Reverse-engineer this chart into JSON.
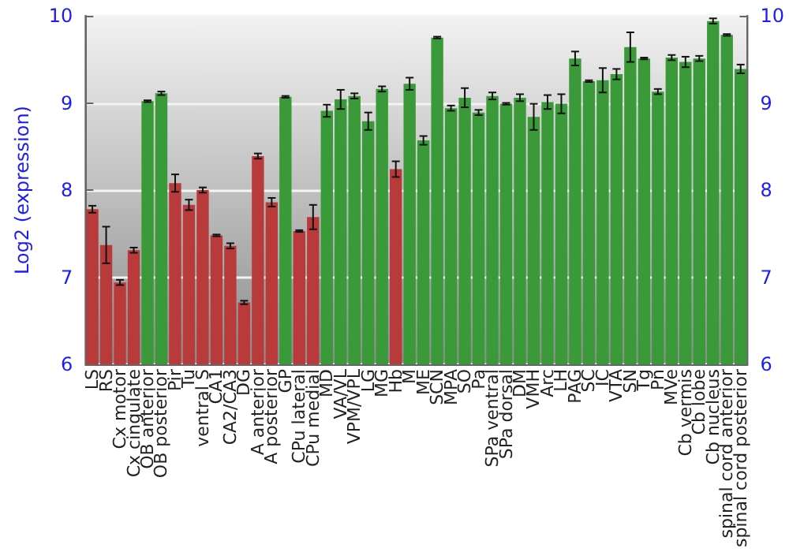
{
  "chart_data": {
    "type": "bar",
    "ylabel": "Log2 (expression)",
    "categories": [
      "LS",
      "RS",
      "Cx motor",
      "Cx cingulate",
      "OB anterior",
      "OB posterior",
      "Pir",
      "Tu",
      "ventral S",
      "CA1",
      "CA2/CA3",
      "DG",
      "A anterior",
      "A posterior",
      "GP",
      "CPu lateral",
      "CPu medial",
      "MD",
      "VA/VL",
      "VPM/VPL",
      "LG",
      "MG",
      "Hb",
      "M",
      "ME",
      "SCN",
      "MPA",
      "SO",
      "Pa",
      "SPa ventral",
      "SPa dorsal",
      "DM",
      "VMH",
      "Arc",
      "LH",
      "PAG",
      "SC",
      "IC",
      "VTA",
      "SN",
      "Tg",
      "Pn",
      "MVe",
      "Cb vermis",
      "Cb lobe",
      "Cb nucleus",
      "spinal cord anterior",
      "spinal cord posterior"
    ],
    "values": [
      7.78,
      7.37,
      6.94,
      7.31,
      9.02,
      9.11,
      8.08,
      7.83,
      8.0,
      7.48,
      7.36,
      6.71,
      8.39,
      7.86,
      9.07,
      7.53,
      7.69,
      8.91,
      9.04,
      9.08,
      8.79,
      9.16,
      8.24,
      9.22,
      8.57,
      9.75,
      8.94,
      9.06,
      8.89,
      9.08,
      8.99,
      9.06,
      8.84,
      9.01,
      8.99,
      9.51,
      9.25,
      9.26,
      9.33,
      9.64,
      9.51,
      9.13,
      9.52,
      9.47,
      9.51,
      9.94,
      9.78,
      9.39
    ],
    "errors": [
      0.04,
      0.21,
      0.03,
      0.03,
      0.01,
      0.02,
      0.1,
      0.06,
      0.03,
      0.01,
      0.03,
      0.02,
      0.03,
      0.05,
      0.01,
      0.01,
      0.14,
      0.07,
      0.11,
      0.03,
      0.1,
      0.03,
      0.09,
      0.07,
      0.05,
      0.01,
      0.03,
      0.11,
      0.03,
      0.04,
      0.01,
      0.04,
      0.15,
      0.08,
      0.11,
      0.08,
      0.01,
      0.14,
      0.06,
      0.17,
      0.01,
      0.03,
      0.03,
      0.06,
      0.03,
      0.03,
      0.01,
      0.05
    ],
    "colors": [
      "#b83a3a",
      "#b83a3a",
      "#b83a3a",
      "#b83a3a",
      "#3a9a3a",
      "#3a9a3a",
      "#b83a3a",
      "#b83a3a",
      "#b83a3a",
      "#b83a3a",
      "#b83a3a",
      "#b83a3a",
      "#b83a3a",
      "#b83a3a",
      "#3a9a3a",
      "#b83a3a",
      "#b83a3a",
      "#3a9a3a",
      "#3a9a3a",
      "#3a9a3a",
      "#3a9a3a",
      "#3a9a3a",
      "#b83a3a",
      "#3a9a3a",
      "#3a9a3a",
      "#3a9a3a",
      "#3a9a3a",
      "#3a9a3a",
      "#3a9a3a",
      "#3a9a3a",
      "#3a9a3a",
      "#3a9a3a",
      "#3a9a3a",
      "#3a9a3a",
      "#3a9a3a",
      "#3a9a3a",
      "#3a9a3a",
      "#3a9a3a",
      "#3a9a3a",
      "#3a9a3a",
      "#3a9a3a",
      "#3a9a3a",
      "#3a9a3a",
      "#3a9a3a",
      "#3a9a3a",
      "#3a9a3a",
      "#3a9a3a",
      "#3a9a3a"
    ],
    "ylim": [
      6,
      10
    ],
    "yticks": [
      6,
      7,
      8,
      9,
      10
    ],
    "y2lim": [
      6,
      10
    ],
    "y2ticks": [
      6,
      7,
      8,
      9,
      10
    ],
    "grid": "y"
  }
}
